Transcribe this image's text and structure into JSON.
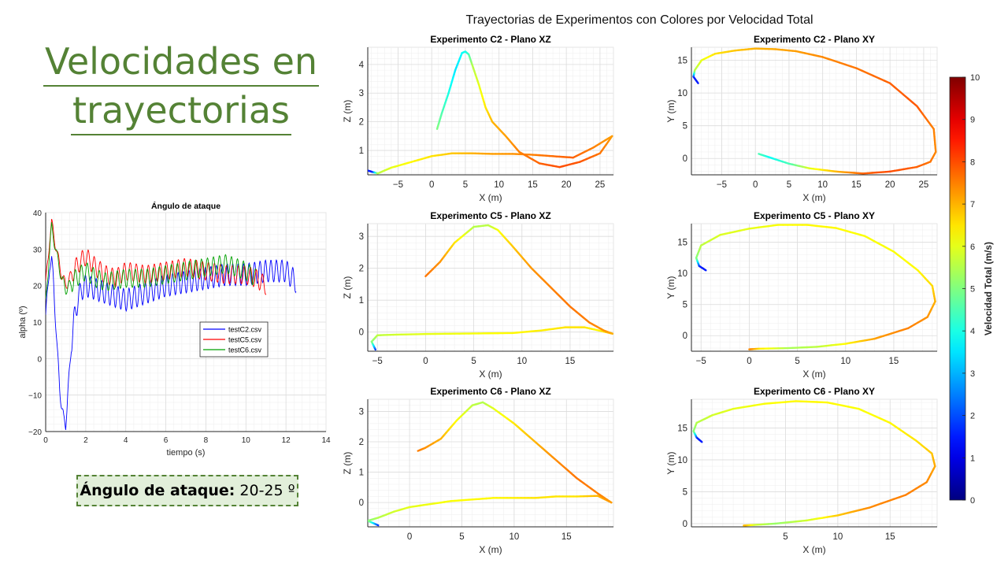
{
  "slide": {
    "title_line1": "Velocidades en",
    "title_line2": "trayectorias",
    "callout_label": "Ángulo de ataque:",
    "callout_value": "20-25 º",
    "figure_title": "Trayectorias de Experimentos con Colores por Velocidad Total"
  },
  "chart_data": [
    {
      "type": "line",
      "title": "Ángulo de ataque",
      "xlabel": "tiempo (s)",
      "ylabel": "alpha (º)",
      "xlim": [
        0,
        14
      ],
      "ylim": [
        -20,
        40
      ],
      "xticks": [
        0,
        2,
        4,
        6,
        8,
        10,
        12,
        14
      ],
      "yticks": [
        -20,
        -10,
        0,
        10,
        20,
        30,
        40
      ],
      "grid": true,
      "legend_position": "center-right",
      "series": [
        {
          "name": "testC2.csv",
          "color": "#0000ff",
          "x": [
            0,
            0.1,
            0.2,
            0.3,
            0.4,
            0.5,
            0.6,
            0.7,
            0.8,
            0.9,
            1.0,
            1.1,
            1.2,
            1.3,
            1.4,
            1.6,
            1.8,
            2.0,
            2.5,
            3.0,
            3.5,
            4.0,
            4.5,
            5.0,
            6.0,
            7.0,
            8.0,
            9.0,
            10.0,
            11.0,
            12.0,
            12.5
          ],
          "y": [
            12,
            18,
            26,
            27,
            20,
            10,
            0,
            -8,
            -13,
            -17,
            -18,
            -10,
            -3,
            5,
            10,
            16,
            19,
            20,
            19,
            18,
            17,
            16,
            17,
            18,
            20,
            21,
            22,
            23,
            23,
            24,
            24,
            21
          ]
        },
        {
          "name": "testC5.csv",
          "color": "#ff0000",
          "x": [
            0,
            0.2,
            0.3,
            0.4,
            0.6,
            0.8,
            1.0,
            1.2,
            1.5,
            1.8,
            2.0,
            2.5,
            3.0,
            3.5,
            4.0,
            5.0,
            6.0,
            7.0,
            8.0,
            9.0,
            10.0,
            10.5,
            11.0
          ],
          "y": [
            20,
            33,
            37,
            34,
            28,
            23,
            20,
            22,
            25,
            27,
            28,
            25,
            23,
            22,
            24,
            23,
            24,
            25,
            24,
            23,
            23,
            22,
            20
          ]
        },
        {
          "name": "testC6.csv",
          "color": "#00a000",
          "x": [
            0,
            0.2,
            0.3,
            0.4,
            0.6,
            0.8,
            1.0,
            1.2,
            1.5,
            2.0,
            2.5,
            3.0,
            4.0,
            5.0,
            6.0,
            7.0,
            8.0,
            9.0,
            9.5,
            10.0,
            10.5
          ],
          "y": [
            15,
            30,
            36,
            33,
            27,
            22,
            19,
            20,
            22,
            24,
            22,
            21,
            22,
            22,
            23,
            24,
            25,
            26,
            25,
            24,
            22
          ]
        }
      ]
    },
    {
      "type": "line",
      "title": "Experimento C2 - Plano XZ",
      "xlabel": "X (m)",
      "ylabel": "Z (m)",
      "xlim": [
        -9.5,
        27
      ],
      "ylim": [
        0.15,
        4.6
      ],
      "xticks": [
        -5,
        0,
        5,
        10,
        15,
        20,
        25
      ],
      "yticks": [
        1,
        2,
        3,
        4
      ],
      "grid": true,
      "color_by": "Velocidad Total (m/s)",
      "series": [
        {
          "x": [
            -9.5,
            -8.8,
            -8,
            -6,
            -3,
            0,
            3,
            6,
            9,
            12,
            15,
            18,
            21,
            24,
            26.8,
            25,
            22,
            19,
            16,
            13,
            11,
            9,
            8,
            7,
            6,
            5.5,
            5,
            4.5,
            3.5,
            2.5,
            1.5,
            0.8
          ],
          "y": [
            0.3,
            0.25,
            0.2,
            0.4,
            0.6,
            0.8,
            0.9,
            0.9,
            0.88,
            0.88,
            0.85,
            0.8,
            0.75,
            1.1,
            1.5,
            0.9,
            0.6,
            0.42,
            0.55,
            0.95,
            1.5,
            2.0,
            2.5,
            3.3,
            4.0,
            4.35,
            4.45,
            4.4,
            3.8,
            3.0,
            2.3,
            1.75
          ],
          "v": [
            1.5,
            1.5,
            5.5,
            6,
            6.3,
            6.5,
            6.8,
            7,
            7.2,
            7.3,
            7.5,
            7.7,
            7.8,
            7.5,
            7.2,
            7.6,
            7.9,
            8,
            7.8,
            7.5,
            7.2,
            7,
            6.5,
            6,
            5.5,
            4.5,
            4,
            3.8,
            3.5,
            4,
            4.5,
            5
          ]
        }
      ]
    },
    {
      "type": "line",
      "title": "Experimento C2 - Plano XY",
      "xlabel": "X (m)",
      "ylabel": "Y (m)",
      "xlim": [
        -9.5,
        27
      ],
      "ylim": [
        -2.5,
        17
      ],
      "xticks": [
        -5,
        0,
        5,
        10,
        15,
        20,
        25
      ],
      "yticks": [
        0,
        5,
        10,
        15
      ],
      "grid": true,
      "color_by": "Velocidad Total (m/s)",
      "series": [
        {
          "x": [
            -8.5,
            -9.2,
            -9,
            -8,
            -6,
            -3,
            0,
            3,
            6,
            10,
            15,
            20,
            24,
            26.5,
            26.8,
            26,
            24,
            20,
            16,
            12,
            8,
            5,
            2,
            0.5
          ],
          "y": [
            11.5,
            12.5,
            13.5,
            15,
            16,
            16.5,
            16.8,
            16.7,
            16.4,
            15.5,
            13.8,
            11.5,
            8,
            4.5,
            1,
            -0.5,
            -1.3,
            -2.0,
            -2.3,
            -2.0,
            -1.5,
            -0.8,
            0.2,
            0.7
          ],
          "v": [
            1.5,
            1.5,
            5.5,
            6,
            6.5,
            6.8,
            7,
            7.1,
            7.2,
            7.4,
            7.6,
            7.8,
            7.9,
            7.5,
            7.4,
            7.6,
            7.8,
            8,
            7.8,
            7,
            6,
            4.5,
            3.8,
            4.5
          ]
        }
      ]
    },
    {
      "type": "line",
      "title": "Experimento C5 - Plano XZ",
      "xlabel": "X (m)",
      "ylabel": "Z (m)",
      "xlim": [
        -6,
        19.5
      ],
      "ylim": [
        -0.6,
        3.4
      ],
      "xticks": [
        -5,
        0,
        5,
        10,
        15
      ],
      "yticks": [
        0,
        1,
        2,
        3
      ],
      "grid": true,
      "color_by": "Velocidad Total (m/s)",
      "series": [
        {
          "x": [
            -5.2,
            -5.6,
            -5,
            -3,
            0,
            3,
            6,
            9,
            12,
            14.5,
            16.5,
            18,
            19.4,
            18.5,
            17,
            15,
            13,
            11,
            9,
            7.5,
            6.5,
            5,
            3,
            1.5,
            0
          ],
          "y": [
            -0.55,
            -0.3,
            -0.1,
            -0.08,
            -0.06,
            -0.05,
            -0.04,
            -0.03,
            0.05,
            0.15,
            0.15,
            0.05,
            -0.05,
            0.05,
            0.3,
            0.8,
            1.4,
            2.0,
            2.7,
            3.2,
            3.35,
            3.3,
            2.8,
            2.2,
            1.75
          ],
          "v": [
            1.5,
            5,
            5.6,
            5.8,
            6,
            6.1,
            6.2,
            6.3,
            6.4,
            6.5,
            6.5,
            6.3,
            7,
            7.3,
            7.5,
            7.6,
            7.5,
            7.3,
            6.8,
            6.2,
            5.6,
            5.5,
            6.5,
            7.3,
            7.6
          ]
        }
      ]
    },
    {
      "type": "line",
      "title": "Experimento C5 - Plano XY",
      "xlabel": "X (m)",
      "ylabel": "Y (m)",
      "xlim": [
        -6,
        19.5
      ],
      "ylim": [
        -2.5,
        18
      ],
      "xticks": [
        -5,
        0,
        5,
        10,
        15
      ],
      "yticks": [
        0,
        5,
        10,
        15
      ],
      "grid": true,
      "color_by": "Velocidad Total (m/s)",
      "series": [
        {
          "x": [
            -4.5,
            -5.2,
            -5.5,
            -5,
            -3,
            0,
            3,
            6,
            9,
            12,
            15,
            17.5,
            19,
            19.3,
            18.5,
            16.5,
            13,
            10,
            7,
            4,
            1,
            0
          ],
          "y": [
            10.5,
            11.2,
            12.5,
            14.5,
            16.2,
            17.2,
            17.8,
            17.8,
            17.3,
            16,
            13.5,
            10.5,
            8,
            5.5,
            3,
            1.2,
            -0.5,
            -1.3,
            -1.8,
            -2.0,
            -2.1,
            -2.2
          ],
          "v": [
            1.5,
            1.5,
            5,
            5.6,
            5.9,
            6,
            6.2,
            6.3,
            6.3,
            6.2,
            6.2,
            6.3,
            6.6,
            7,
            7.3,
            7.5,
            7.2,
            6.3,
            5.6,
            5.4,
            6.5,
            7.5
          ]
        }
      ]
    },
    {
      "type": "line",
      "title": "Experimento C6 - Plano XZ",
      "xlabel": "X (m)",
      "ylabel": "Z (m)",
      "xlim": [
        -4,
        19.5
      ],
      "ylim": [
        -0.8,
        3.4
      ],
      "xticks": [
        0,
        5,
        10,
        15
      ],
      "yticks": [
        0,
        1,
        2,
        3
      ],
      "grid": true,
      "color_by": "Velocidad Total (m/s)",
      "series": [
        {
          "x": [
            -3,
            -4,
            -3,
            -1.5,
            0,
            2,
            4,
            6,
            8,
            10,
            12,
            14,
            16,
            18,
            19.3,
            18,
            16,
            14,
            12,
            10,
            8,
            7,
            6,
            4.5,
            3,
            1.5,
            0.8
          ],
          "y": [
            -0.75,
            -0.6,
            -0.5,
            -0.3,
            -0.15,
            -0.05,
            0.05,
            0.1,
            0.15,
            0.15,
            0.15,
            0.2,
            0.2,
            0.22,
            0.0,
            0.3,
            0.8,
            1.4,
            2.0,
            2.6,
            3.1,
            3.3,
            3.2,
            2.7,
            2.1,
            1.8,
            1.7
          ],
          "v": [
            1.5,
            5,
            5.5,
            5.8,
            6,
            6.1,
            6.2,
            6.3,
            6.3,
            6.4,
            6.5,
            6.5,
            6.5,
            7,
            7.2,
            7.5,
            7.6,
            7.4,
            7,
            6.5,
            6,
            5.5,
            5.6,
            6.2,
            7,
            7.3,
            7.5
          ]
        }
      ]
    },
    {
      "type": "line",
      "title": "Experimento C6 - Plano XY",
      "xlabel": "X (m)",
      "ylabel": "Y (m)",
      "xlim": [
        -4,
        19.5
      ],
      "ylim": [
        -0.5,
        19.5
      ],
      "xticks": [
        5,
        10,
        15
      ],
      "yticks": [
        0,
        5,
        10,
        15
      ],
      "grid": true,
      "color_by": "Velocidad Total (m/s)",
      "series": [
        {
          "x": [
            -3,
            -3.5,
            -3.8,
            -3.5,
            -2,
            0,
            3,
            6,
            9,
            12,
            15,
            17.5,
            19,
            19.3,
            18.5,
            16.5,
            13,
            10,
            7,
            4,
            2,
            1
          ],
          "y": [
            12.8,
            13.5,
            14.5,
            15.8,
            17,
            18,
            18.8,
            19.2,
            19,
            18,
            15.8,
            13,
            11,
            9,
            6.5,
            4.5,
            2.5,
            1.3,
            0.5,
            0.0,
            -0.2,
            -0.3
          ],
          "v": [
            1.5,
            1.5,
            5,
            5.5,
            5.8,
            6,
            6.2,
            6.3,
            6.3,
            6.2,
            6.3,
            6.5,
            6.8,
            7.1,
            7.4,
            7.5,
            7.4,
            6.8,
            5.8,
            5.2,
            5.8,
            7
          ]
        }
      ]
    }
  ],
  "colorbar": {
    "label": "Velocidad Total (m/s)",
    "min": 0,
    "max": 10,
    "ticks": [
      0,
      1,
      2,
      3,
      4,
      5,
      6,
      7,
      8,
      9,
      10
    ],
    "colormap": "jet"
  }
}
